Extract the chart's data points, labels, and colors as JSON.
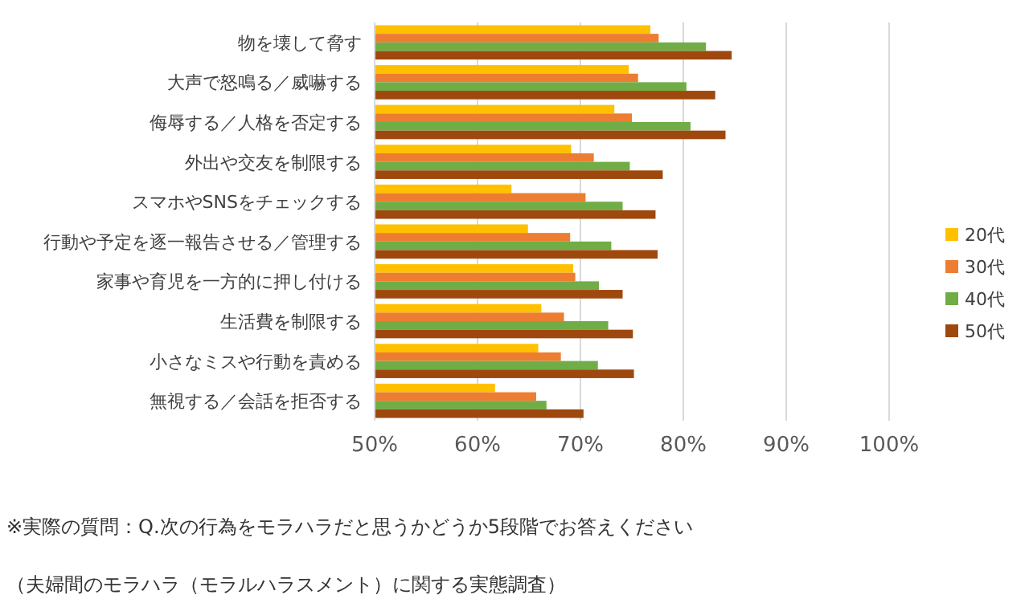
{
  "chart_data": {
    "type": "bar",
    "orientation": "horizontal",
    "categories": [
      "物を壊して脅す",
      "大声で怒鳴る／威嚇する",
      "侮辱する／人格を否定する",
      "外出や交友を制限する",
      "スマホやSNSをチェックする",
      "行動や予定を逐一報告させる／管理する",
      "家事や育児を一方的に押し付ける",
      "生活費を制限する",
      "小さなミスや行動を責める",
      "無視する／会話を拒否する"
    ],
    "series": [
      {
        "name": "20代",
        "color": "#ffc000",
        "values": [
          76.8,
          74.7,
          73.3,
          69.1,
          63.3,
          64.9,
          69.3,
          66.2,
          65.9,
          61.7
        ]
      },
      {
        "name": "30代",
        "color": "#ed7d31",
        "values": [
          77.6,
          75.6,
          75.0,
          71.3,
          70.5,
          69.0,
          69.5,
          68.4,
          68.1,
          65.7
        ]
      },
      {
        "name": "40代",
        "color": "#70ad47",
        "values": [
          82.2,
          80.3,
          80.7,
          74.8,
          74.1,
          73.0,
          71.8,
          72.7,
          71.7,
          66.7
        ]
      },
      {
        "name": "50代",
        "color": "#9e480e",
        "values": [
          84.7,
          83.1,
          84.1,
          78.0,
          77.3,
          77.5,
          74.1,
          75.1,
          75.2,
          70.3
        ]
      }
    ],
    "xlim": [
      50,
      100
    ],
    "xticks": [
      {
        "value": 50,
        "label": "50%"
      },
      {
        "value": 60,
        "label": "60%"
      },
      {
        "value": 70,
        "label": "70%"
      },
      {
        "value": 80,
        "label": "80%"
      },
      {
        "value": 90,
        "label": "90%"
      },
      {
        "value": 100,
        "label": "100%"
      }
    ],
    "grid": "x",
    "legend": "right",
    "annotations": [
      "※実際の質問：Q.次の行為をモラハラだと思うかどうか5段階でお答えください",
      "（夫婦間のモラハラ（モラルハラスメント）に関する実態調査）"
    ]
  }
}
